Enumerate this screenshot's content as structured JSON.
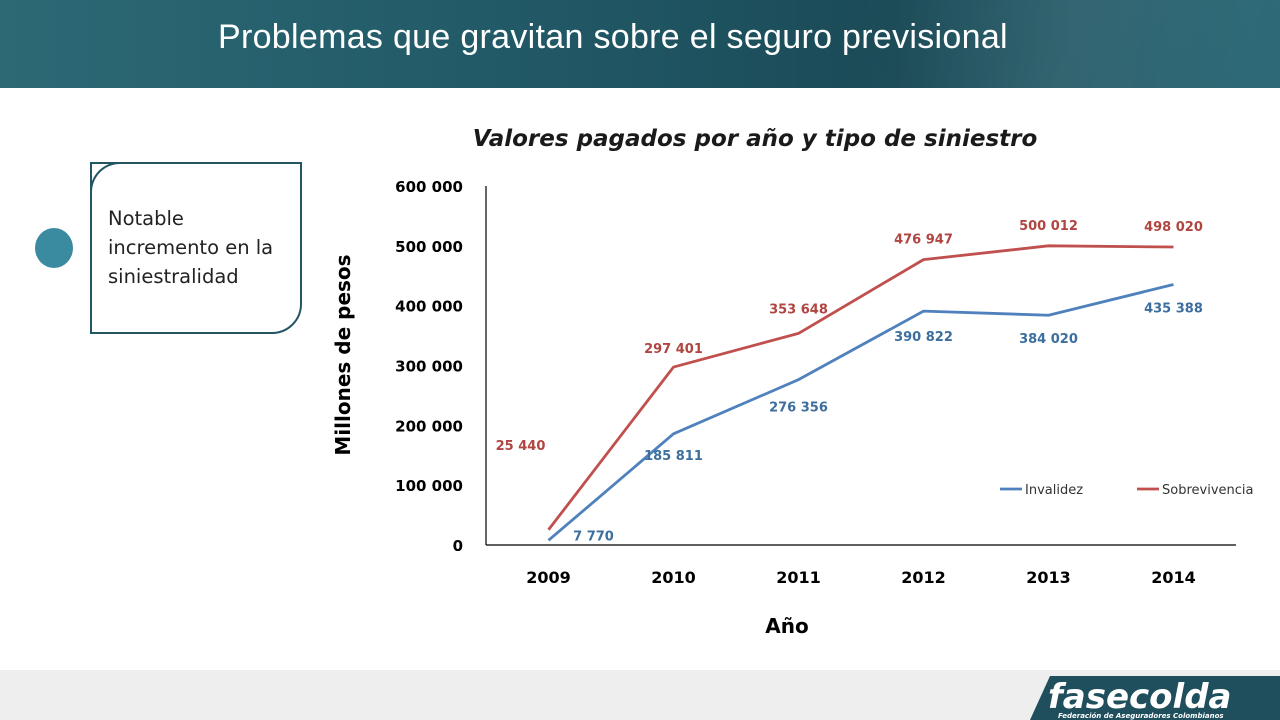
{
  "header": {
    "title": "Problemas que gravitan sobre el seguro previsional"
  },
  "note": {
    "text": "Notable incremento en la siniestralidad"
  },
  "logo": {
    "name": "fasecolda",
    "subtitle": "Federación de Aseguradores Colombianos"
  },
  "colors": {
    "header": "#215765",
    "invalidez": "#4f81bd",
    "sobrevivencia": "#c0504d",
    "accent": "#3a8aa0"
  },
  "chart_data": {
    "type": "line",
    "title": "Valores pagados por año y tipo de siniestro",
    "xlabel": "Año",
    "ylabel": "Millones de pesos",
    "categories": [
      "2009",
      "2010",
      "2011",
      "2012",
      "2013",
      "2014"
    ],
    "ylim": [
      0,
      600000
    ],
    "yticks": [
      0,
      100000,
      200000,
      300000,
      400000,
      500000,
      600000
    ],
    "ytick_labels": [
      "0",
      "100 000",
      "200 000",
      "300 000",
      "400 000",
      "500 000",
      "600 000"
    ],
    "grid": false,
    "legend_position": "bottom-right",
    "series": [
      {
        "name": "Invalidez",
        "color": "#4f81bd",
        "values": [
          7770,
          185811,
          276356,
          390822,
          384020,
          435388
        ],
        "labels": [
          "7 770",
          "185 811",
          "276 356",
          "390 822",
          "384 020",
          "435 388"
        ]
      },
      {
        "name": "Sobrevivencia",
        "color": "#c0504d",
        "values": [
          25440,
          297401,
          353648,
          476947,
          500012,
          498020
        ],
        "labels": [
          "25 440",
          "297 401",
          "353 648",
          "476 947",
          "500 012",
          "498 020"
        ]
      }
    ]
  }
}
